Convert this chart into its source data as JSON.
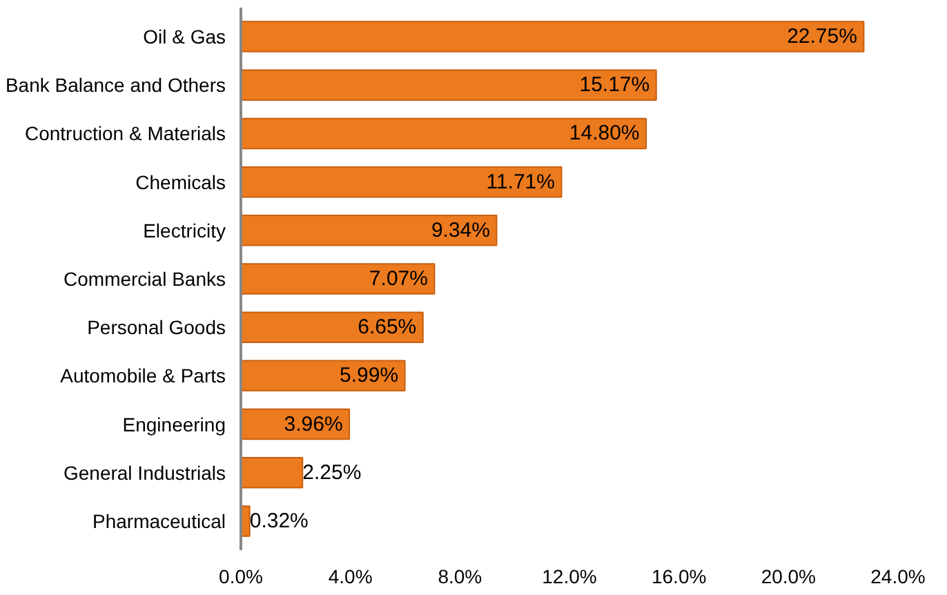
{
  "chart_data": {
    "type": "bar",
    "orientation": "horizontal",
    "categories": [
      "Oil & Gas",
      "Bank Balance and Others",
      "Contruction & Materials",
      "Chemicals",
      "Electricity",
      "Commercial Banks",
      "Personal Goods",
      "Automobile & Parts",
      "Engineering",
      "General Industrials",
      "Pharmaceutical"
    ],
    "values": [
      22.75,
      15.17,
      14.8,
      11.71,
      9.34,
      7.07,
      6.65,
      5.99,
      3.96,
      2.25,
      0.32
    ],
    "value_labels": [
      "22.75%",
      "15.17%",
      "14.80%",
      "11.71%",
      "9.34%",
      "7.07%",
      "6.65%",
      "5.99%",
      "3.96%",
      "2.25%",
      "0.32%"
    ],
    "color": "#ec7a1e",
    "xlim": [
      0,
      24
    ],
    "xticks": [
      {
        "value": 0,
        "label": "0.0%"
      },
      {
        "value": 4,
        "label": "4.0%"
      },
      {
        "value": 8,
        "label": "8.0%"
      },
      {
        "value": 12,
        "label": "12.0%"
      },
      {
        "value": 16,
        "label": "16.0%"
      },
      {
        "value": 20,
        "label": "20.0%"
      },
      {
        "value": 24,
        "label": "24.0%"
      }
    ],
    "grid": false
  }
}
